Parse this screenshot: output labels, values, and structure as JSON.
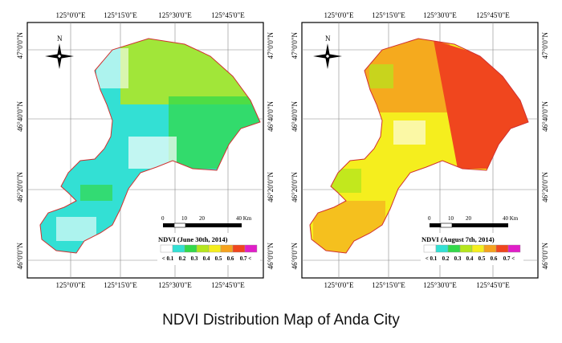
{
  "caption": "NDVI Distribution Map of Anda City",
  "north_label": "N",
  "lon_ticks": [
    "125°0'0\"E",
    "125°15'0\"E",
    "125°30'0\"E",
    "125°45'0\"E"
  ],
  "lat_ticks": [
    "47°0'0\"N",
    "46°40'0\"N",
    "46°20'0\"N",
    "46°0'0\"N"
  ],
  "scale_labels": [
    "0",
    "10",
    "20",
    "40 Km"
  ],
  "legend": {
    "classes": [
      "< 0.1",
      "0.2",
      "0.3",
      "0.4",
      "0.5",
      "0.6",
      "0.7 <"
    ],
    "colors": [
      "#ffffff",
      "#33e0d4",
      "#33d94a",
      "#b5e61d",
      "#f5ee1e",
      "#f5a21e",
      "#f0461e",
      "#e01ec8"
    ]
  },
  "maps": [
    {
      "legend_title": "NDVI  (June 30th, 2014)",
      "dominant_colors": [
        "#33e0d4",
        "#b5e61d",
        "#33d94a"
      ]
    },
    {
      "legend_title": "NDVI  (August 7th, 2014)",
      "dominant_colors": [
        "#f5ee1e",
        "#f5a21e",
        "#f0461e"
      ]
    }
  ]
}
